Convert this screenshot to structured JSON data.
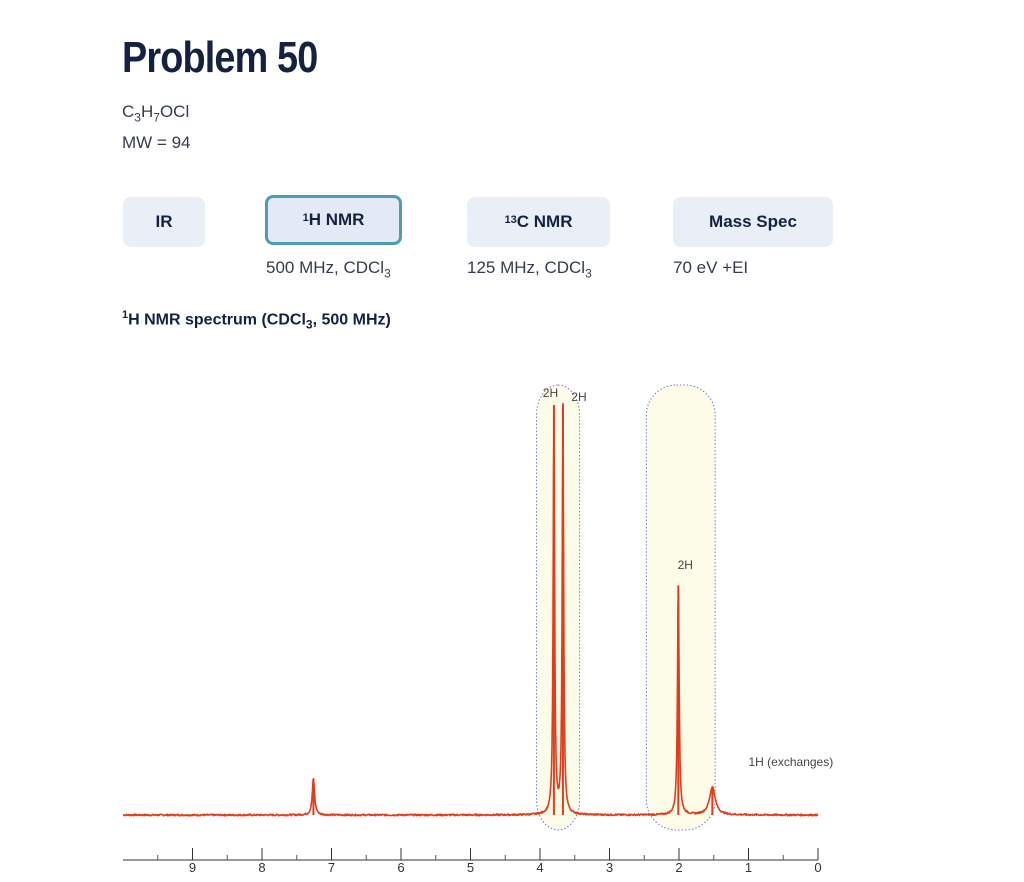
{
  "header": {
    "title": "Problem 50",
    "formula": {
      "c": "C",
      "c_sub": "3",
      "h": "H",
      "h_sub": "7",
      "rest": "OCl"
    },
    "mw": "MW = 94"
  },
  "tabs": [
    {
      "label": "IR",
      "sub": ""
    },
    {
      "sup": "1",
      "label": "H NMR",
      "sub": "500 MHz, CDCl",
      "sub_sub": "3",
      "active": true
    },
    {
      "sup": "13",
      "label": "C NMR",
      "sub": "125 MHz, CDCl",
      "sub_sub": "3"
    },
    {
      "label": "Mass Spec",
      "sub": "70 eV +EI"
    }
  ],
  "section": {
    "sup": "1",
    "pre": "H NMR spectrum (CDCl",
    "sub": "3",
    "post": ", 500 MHz)"
  },
  "chart_data": {
    "type": "line",
    "title": "",
    "xlabel": "",
    "ylabel": "",
    "xlim": [
      10,
      0
    ],
    "x_reversed": true,
    "ylim": [
      0,
      1
    ],
    "x_ticks": [
      9,
      8,
      7,
      6,
      5,
      4,
      3,
      2,
      1,
      0
    ],
    "x_tick_labels": [
      "9",
      "8",
      "7",
      "6",
      "5",
      "4",
      "3",
      "2",
      "1",
      "0"
    ],
    "line_color": "#e03c1e",
    "highlight_color": "#fdfce9",
    "peaks": [
      {
        "ppm": 7.26,
        "height": 0.088,
        "width": 0.02
      },
      {
        "ppm": 3.8,
        "height": 1.0,
        "width": 0.012
      },
      {
        "ppm": 3.67,
        "height": 1.0,
        "width": 0.012
      },
      {
        "ppm": 2.01,
        "height": 0.56,
        "width": 0.014
      },
      {
        "ppm": 1.52,
        "height": 0.068,
        "width": 0.05
      }
    ],
    "highlight_regions": [
      [
        3.43,
        4.05
      ],
      [
        1.48,
        2.47
      ]
    ],
    "annotations": [
      {
        "text": "2H",
        "ppm": 3.96,
        "level": 1.02
      },
      {
        "text": "2H",
        "ppm": 3.55,
        "level": 1.01
      },
      {
        "text": "2H",
        "ppm": 2.02,
        "level": 0.6
      },
      {
        "text": "1H (exchanges)",
        "ppm": 1.0,
        "level": 0.12
      }
    ]
  }
}
